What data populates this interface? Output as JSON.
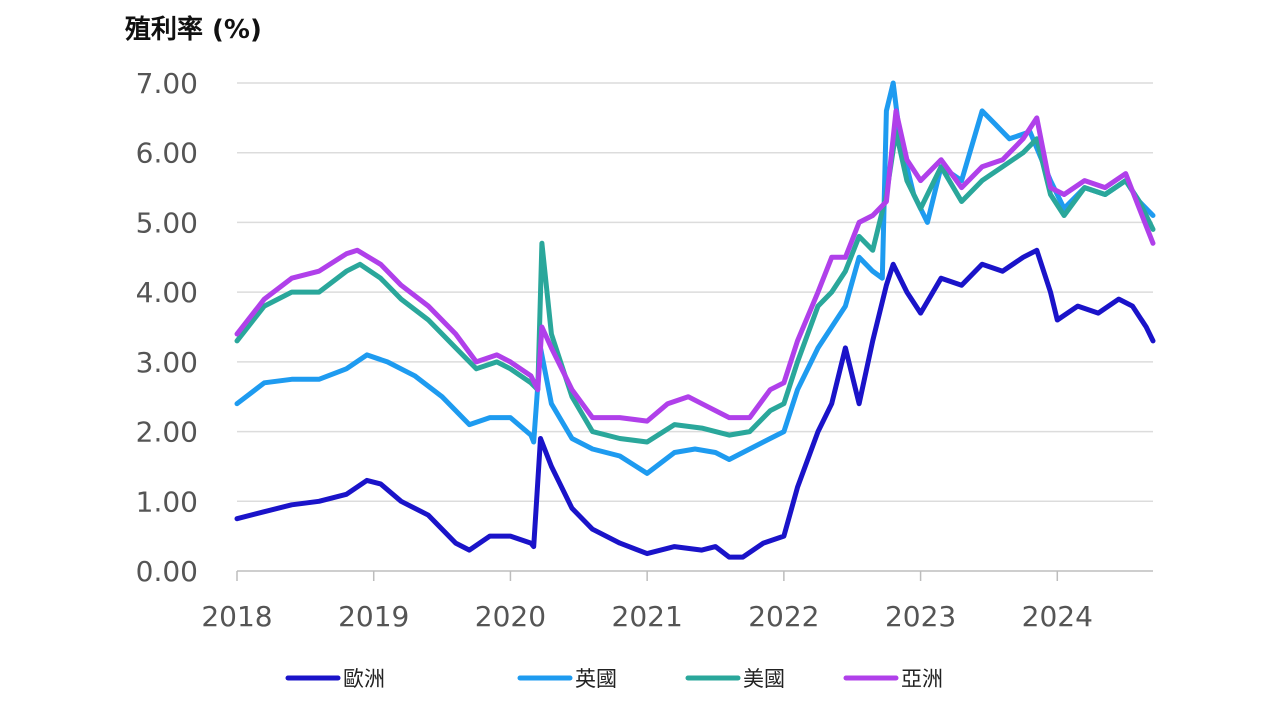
{
  "chart_data": {
    "type": "line",
    "ylabel": "殖利率 (%)",
    "xlabel": "",
    "ylim": [
      0,
      7
    ],
    "xlim": [
      2018.0,
      2024.7
    ],
    "y_ticks": [
      "0.00",
      "1.00",
      "2.00",
      "3.00",
      "4.00",
      "5.00",
      "6.00",
      "7.00"
    ],
    "x_ticks": [
      "2018",
      "2019",
      "2020",
      "2021",
      "2022",
      "2023",
      "2024"
    ],
    "grid": "horizontal",
    "legend_position": "bottom",
    "series": [
      {
        "name": "歐洲",
        "color": "#1a13c9",
        "x": [
          2018.0,
          2018.2,
          2018.4,
          2018.6,
          2018.8,
          2018.95,
          2019.05,
          2019.2,
          2019.4,
          2019.6,
          2019.7,
          2019.85,
          2020.0,
          2020.15,
          2020.17,
          2020.22,
          2020.3,
          2020.45,
          2020.6,
          2020.8,
          2021.0,
          2021.2,
          2021.4,
          2021.5,
          2021.6,
          2021.7,
          2021.85,
          2022.0,
          2022.1,
          2022.25,
          2022.35,
          2022.45,
          2022.55,
          2022.65,
          2022.75,
          2022.8,
          2022.9,
          2023.0,
          2023.15,
          2023.3,
          2023.45,
          2023.6,
          2023.75,
          2023.85,
          2023.95,
          2024.0,
          2024.15,
          2024.3,
          2024.45,
          2024.55,
          2024.65,
          2024.7
        ],
        "values": [
          0.75,
          0.85,
          0.95,
          1.0,
          1.1,
          1.3,
          1.25,
          1.0,
          0.8,
          0.4,
          0.3,
          0.5,
          0.5,
          0.4,
          0.35,
          1.9,
          1.5,
          0.9,
          0.6,
          0.4,
          0.25,
          0.35,
          0.3,
          0.35,
          0.2,
          0.2,
          0.4,
          0.5,
          1.2,
          2.0,
          2.4,
          3.2,
          2.4,
          3.3,
          4.1,
          4.4,
          4.0,
          3.7,
          4.2,
          4.1,
          4.4,
          4.3,
          4.5,
          4.6,
          4.0,
          3.6,
          3.8,
          3.7,
          3.9,
          3.8,
          3.5,
          3.3
        ]
      },
      {
        "name": "英國",
        "color": "#1e9bf0",
        "x": [
          2018.0,
          2018.2,
          2018.4,
          2018.6,
          2018.8,
          2018.95,
          2019.1,
          2019.3,
          2019.5,
          2019.7,
          2019.85,
          2020.0,
          2020.15,
          2020.17,
          2020.22,
          2020.3,
          2020.45,
          2020.6,
          2020.8,
          2021.0,
          2021.2,
          2021.35,
          2021.5,
          2021.6,
          2021.75,
          2021.9,
          2022.0,
          2022.1,
          2022.25,
          2022.35,
          2022.45,
          2022.55,
          2022.65,
          2022.72,
          2022.75,
          2022.8,
          2022.85,
          2022.95,
          2023.05,
          2023.15,
          2023.3,
          2023.45,
          2023.55,
          2023.65,
          2023.8,
          2023.95,
          2024.05,
          2024.2,
          2024.35,
          2024.5,
          2024.6,
          2024.7
        ],
        "values": [
          2.4,
          2.7,
          2.75,
          2.75,
          2.9,
          3.1,
          3.0,
          2.8,
          2.5,
          2.1,
          2.2,
          2.2,
          1.95,
          1.85,
          3.2,
          2.4,
          1.9,
          1.75,
          1.65,
          1.4,
          1.7,
          1.75,
          1.7,
          1.6,
          1.75,
          1.9,
          2.0,
          2.6,
          3.2,
          3.5,
          3.8,
          4.5,
          4.3,
          4.2,
          6.6,
          7.0,
          6.2,
          5.4,
          5.0,
          5.8,
          5.6,
          6.6,
          6.4,
          6.2,
          6.3,
          5.6,
          5.2,
          5.5,
          5.4,
          5.6,
          5.3,
          5.1
        ]
      },
      {
        "name": "美國",
        "color": "#2aa79b",
        "x": [
          2018.0,
          2018.2,
          2018.4,
          2018.6,
          2018.8,
          2018.9,
          2019.05,
          2019.2,
          2019.4,
          2019.6,
          2019.75,
          2019.9,
          2020.0,
          2020.15,
          2020.2,
          2020.23,
          2020.3,
          2020.45,
          2020.6,
          2020.8,
          2021.0,
          2021.2,
          2021.4,
          2021.5,
          2021.6,
          2021.75,
          2021.9,
          2022.0,
          2022.1,
          2022.25,
          2022.35,
          2022.45,
          2022.55,
          2022.65,
          2022.75,
          2022.82,
          2022.9,
          2023.0,
          2023.15,
          2023.3,
          2023.45,
          2023.6,
          2023.75,
          2023.85,
          2023.95,
          2024.05,
          2024.2,
          2024.35,
          2024.5,
          2024.6,
          2024.7
        ],
        "values": [
          3.3,
          3.8,
          4.0,
          4.0,
          4.3,
          4.4,
          4.2,
          3.9,
          3.6,
          3.2,
          2.9,
          3.0,
          2.9,
          2.7,
          2.6,
          4.7,
          3.4,
          2.5,
          2.0,
          1.9,
          1.85,
          2.1,
          2.05,
          2.0,
          1.95,
          2.0,
          2.3,
          2.4,
          3.0,
          3.8,
          4.0,
          4.3,
          4.8,
          4.6,
          5.4,
          6.3,
          5.6,
          5.2,
          5.8,
          5.3,
          5.6,
          5.8,
          6.0,
          6.2,
          5.4,
          5.1,
          5.5,
          5.4,
          5.6,
          5.3,
          4.9
        ]
      },
      {
        "name": "亞洲",
        "color": "#b040ea",
        "x": [
          2018.0,
          2018.2,
          2018.4,
          2018.6,
          2018.8,
          2018.88,
          2019.05,
          2019.2,
          2019.4,
          2019.6,
          2019.75,
          2019.9,
          2020.0,
          2020.15,
          2020.2,
          2020.23,
          2020.3,
          2020.45,
          2020.6,
          2020.8,
          2021.0,
          2021.15,
          2021.3,
          2021.45,
          2021.6,
          2021.75,
          2021.9,
          2022.0,
          2022.1,
          2022.25,
          2022.35,
          2022.45,
          2022.55,
          2022.65,
          2022.75,
          2022.82,
          2022.9,
          2023.0,
          2023.15,
          2023.3,
          2023.45,
          2023.6,
          2023.75,
          2023.85,
          2023.95,
          2024.05,
          2024.2,
          2024.35,
          2024.5,
          2024.6,
          2024.7
        ],
        "values": [
          3.4,
          3.9,
          4.2,
          4.3,
          4.55,
          4.6,
          4.4,
          4.1,
          3.8,
          3.4,
          3.0,
          3.1,
          3.0,
          2.8,
          2.6,
          3.5,
          3.2,
          2.6,
          2.2,
          2.2,
          2.15,
          2.4,
          2.5,
          2.35,
          2.2,
          2.2,
          2.6,
          2.7,
          3.3,
          4.0,
          4.5,
          4.5,
          5.0,
          5.1,
          5.3,
          6.6,
          5.9,
          5.6,
          5.9,
          5.5,
          5.8,
          5.9,
          6.2,
          6.5,
          5.5,
          5.4,
          5.6,
          5.5,
          5.7,
          5.2,
          4.7
        ]
      }
    ]
  }
}
